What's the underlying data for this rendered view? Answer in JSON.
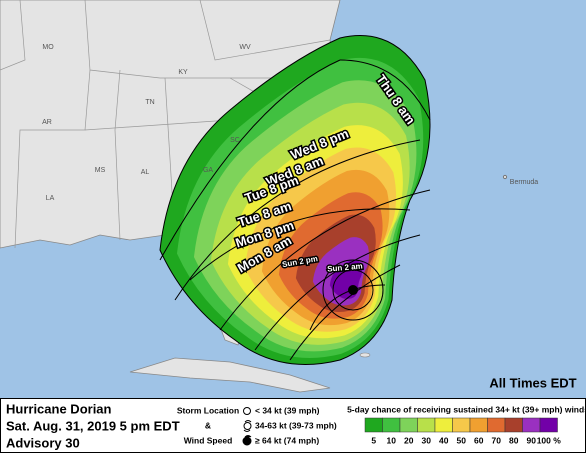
{
  "map_labels": [
    "MO",
    "WV",
    "KY",
    "TN",
    "AR",
    "SC",
    "GA",
    "MS",
    "AL",
    "LA",
    "Bermuda"
  ],
  "track_labels": [
    "Thu 8 am",
    "Wed 8 pm",
    "Wed 8 am",
    "Tue 8 pm",
    "Tue 8 am",
    "Mon 8 pm",
    "Mon 8 am",
    "Sun 2 pm",
    "Sun 2 am"
  ],
  "time_note": "All Times EDT",
  "footer": {
    "storm": "Hurricane Dorian",
    "time": "Sat. Aug. 31, 2019  5 pm EDT",
    "advisory": "Advisory 30",
    "storm_location": "Storm Location",
    "amp": "&",
    "wind_speed": "Wind Speed",
    "wind_classes": [
      "< 34 kt (39 mph)",
      "34-63 kt (39-73 mph)",
      "≥ 64 kt (74 mph)"
    ],
    "scale_title": "5-day chance of receiving sustained 34+ kt (39+ mph) winds",
    "scale": [
      {
        "label": "5",
        "color": "#1fa81f"
      },
      {
        "label": "10",
        "color": "#40c040"
      },
      {
        "label": "20",
        "color": "#7ed35a"
      },
      {
        "label": "30",
        "color": "#b8e04a"
      },
      {
        "label": "40",
        "color": "#eeee3c"
      },
      {
        "label": "50",
        "color": "#f6c84a"
      },
      {
        "label": "60",
        "color": "#f0a030"
      },
      {
        "label": "70",
        "color": "#e06a30"
      },
      {
        "label": "80",
        "color": "#a8402c"
      },
      {
        "label": "90",
        "color": "#9a30c0"
      },
      {
        "label": "100 %",
        "color": "#7200a8"
      }
    ]
  }
}
